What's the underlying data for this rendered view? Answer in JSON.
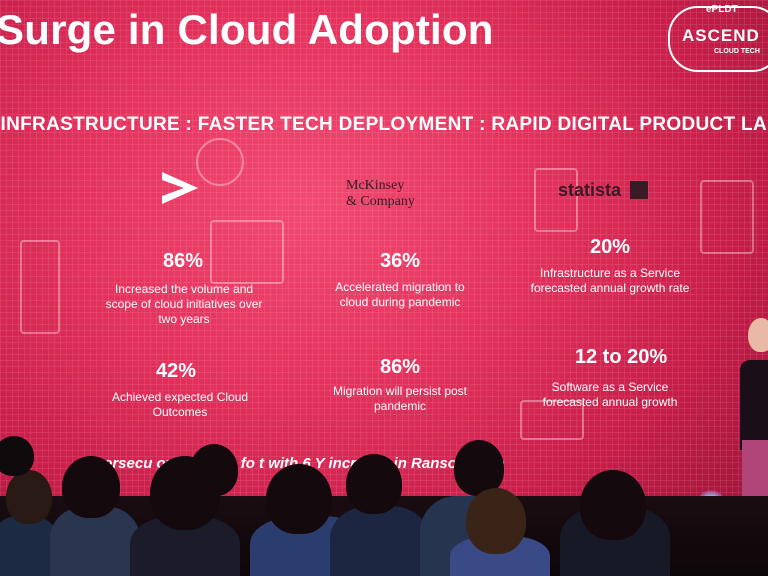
{
  "slide": {
    "title": "Surge in Cloud Adoption",
    "tagline": "E INFRASTRUCTURE : FASTER TECH DEPLOYMENT : RAPID DIGITAL PRODUCT LAUNCH",
    "ticker": "ersecu   oved to the fo   t with 6  Y increase in Ransomware"
  },
  "logo": {
    "top": "ePLDT",
    "main": "ASCEND",
    "sub": "CLOUD TECH"
  },
  "sources": {
    "accenture": ">",
    "mckinsey_line1": "McKinsey",
    "mckinsey_line2": "& Company",
    "statista": "statista"
  },
  "stats": [
    {
      "value": "86%",
      "text": "Increased the volume and scope of cloud initiatives over two years"
    },
    {
      "value": "36%",
      "text": "Accelerated migration to cloud during pandemic"
    },
    {
      "value": "20%",
      "text": "Infrastructure as a Service forecasted annual growth rate"
    },
    {
      "value": "42%",
      "text": "Achieved expected Cloud Outcomes"
    },
    {
      "value": "86%",
      "text": "Migration will persist post pandemic"
    },
    {
      "value": "12 to 20%",
      "text": "Software as a Service forecasted annual growth"
    }
  ]
}
